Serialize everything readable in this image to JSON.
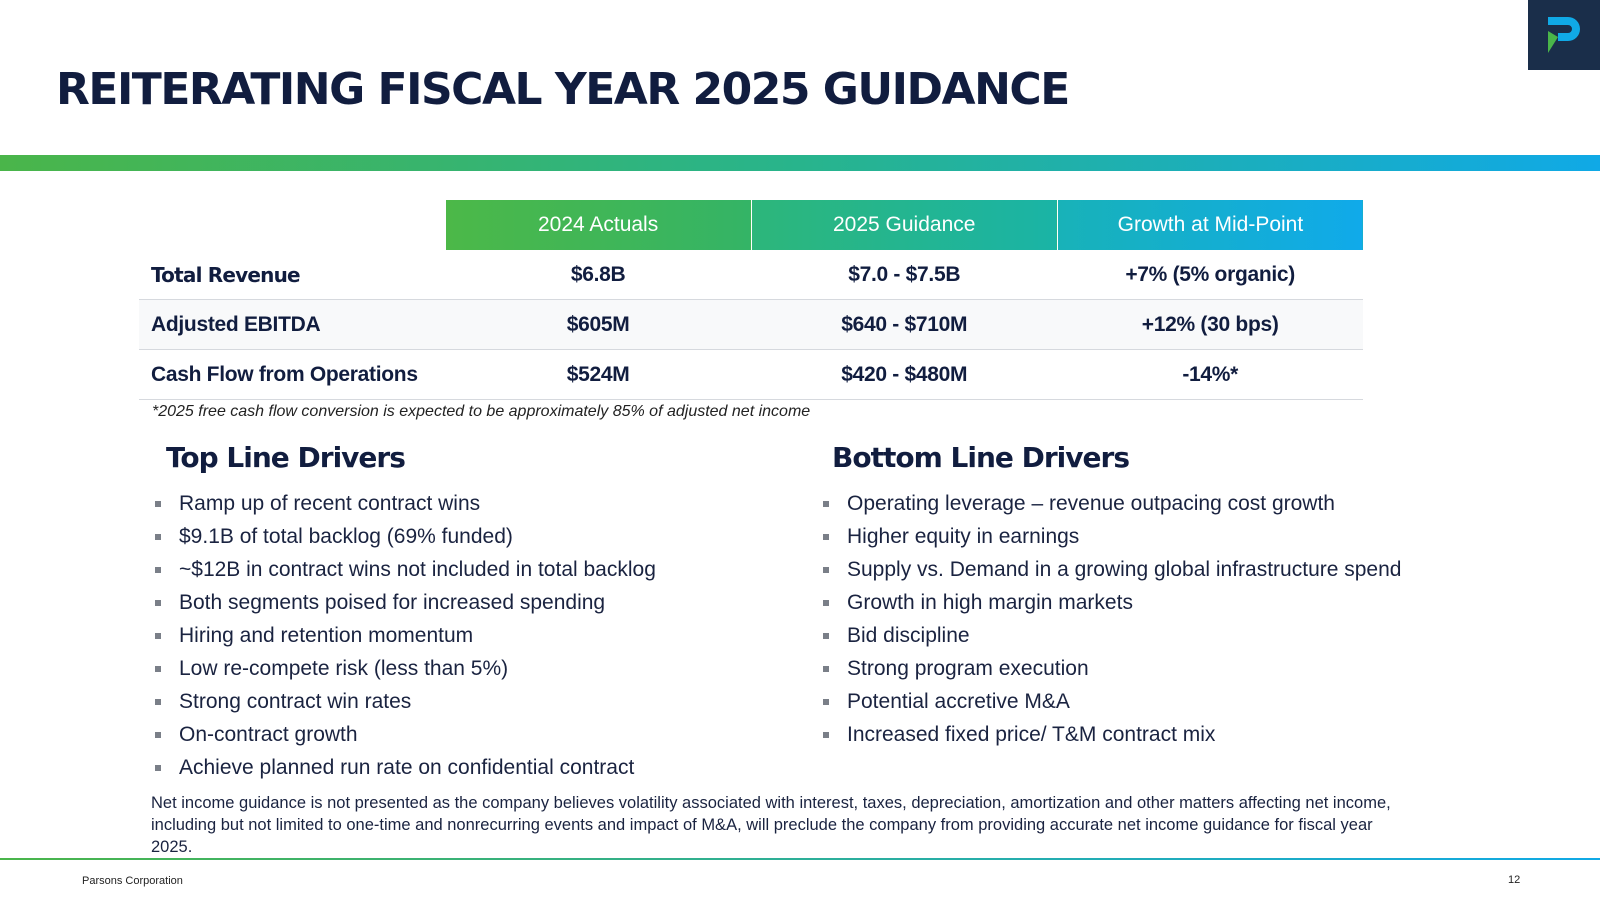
{
  "slide": {
    "title": "REITERATING FISCAL YEAR 2025 GUIDANCE",
    "company": "Parsons Corporation",
    "page_number": "12",
    "logo": "parsons-p-logo",
    "colors": {
      "navy": "#111d3f",
      "green": "#4ab54a",
      "blue": "#10a9e6",
      "logo_bg": "#1a2e4a"
    }
  },
  "table": {
    "headers": [
      "2024 Actuals",
      "2025 Guidance",
      "Growth at Mid-Point"
    ],
    "rows": [
      {
        "label": "Total Revenue",
        "actuals": "$6.8B",
        "guidance": "$7.0 - $7.5B",
        "growth": "+7% (5% organic)"
      },
      {
        "label": "Adjusted EBITDA",
        "actuals": "$605M",
        "guidance": "$640 - $710M",
        "growth": "+12% (30 bps)"
      },
      {
        "label": "Cash Flow from Operations",
        "actuals": "$524M",
        "guidance": "$420 - $480M",
        "growth": "-14%*"
      }
    ],
    "footnote": "*2025 free cash flow conversion is expected to be approximately 85% of adjusted net income"
  },
  "top_line": {
    "title": "Top Line Drivers",
    "items": [
      "Ramp up of recent contract wins",
      "$9.1B of total backlog (69% funded)",
      "~$12B in contract wins not included in total backlog",
      "Both segments poised for increased spending",
      "Hiring and retention momentum",
      "Low re-compete risk (less than 5%)",
      "Strong contract win rates",
      "On-contract growth",
      "Achieve planned run rate on confidential contract"
    ]
  },
  "bottom_line": {
    "title": "Bottom Line Drivers",
    "items": [
      "Operating leverage – revenue outpacing cost growth",
      "Higher equity in earnings",
      "Supply vs. Demand in a growing global infrastructure spend",
      "Growth in high margin markets",
      "Bid discipline",
      "Strong program execution",
      "Potential accretive M&A",
      "Increased fixed price/ T&M contract mix"
    ]
  },
  "disclaimer": "Net income guidance is not presented as the company believes volatility associated with interest, taxes, depreciation, amortization and other matters affecting net income, including but not limited to one-time and nonrecurring events and impact of M&A, will preclude the company from providing accurate net income guidance for fiscal year 2025."
}
